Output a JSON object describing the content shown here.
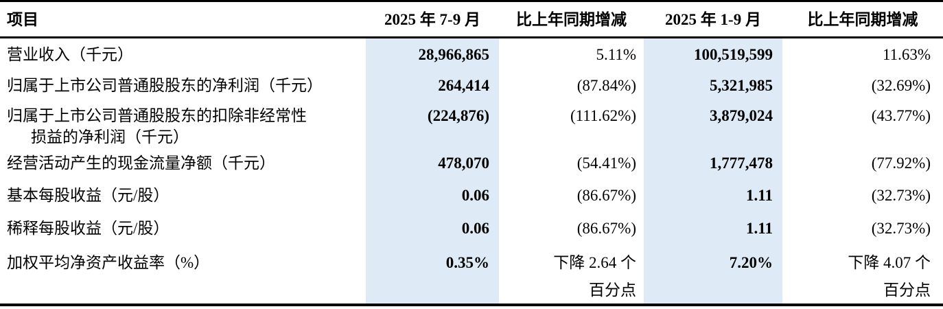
{
  "table": {
    "headers": {
      "item": "项目",
      "q3_period": "2025 年 7-9 月",
      "q3_change": "比上年同期增减",
      "ytd_period": "2025 年 1-9 月",
      "ytd_change": "比上年同期增减"
    },
    "rows": [
      {
        "label": "营业收入（千元）",
        "q3": "28,966,865",
        "q3_change": "5.11%",
        "ytd": "100,519,599",
        "ytd_change": "11.63%"
      },
      {
        "label": "归属于上市公司普通股股东的净利润（千元）",
        "q3": "264,414",
        "q3_change": "(87.84%)",
        "ytd": "5,321,985",
        "ytd_change": "(32.69%)"
      },
      {
        "label": "归属于上市公司普通股股东的扣除非经常性\n损益的净利润（千元）",
        "q3": "(224,876)",
        "q3_change": "(111.62%)",
        "ytd": "3,879,024",
        "ytd_change": "(43.77%)"
      },
      {
        "label": "经营活动产生的现金流量净额（千元）",
        "q3": "478,070",
        "q3_change": "(54.41%)",
        "ytd": "1,777,478",
        "ytd_change": "(77.92%)"
      },
      {
        "label": "基本每股收益（元/股）",
        "q3": "0.06",
        "q3_change": "(86.67%)",
        "ytd": "1.11",
        "ytd_change": "(32.73%)"
      },
      {
        "label": "稀释每股收益（元/股）",
        "q3": "0.06",
        "q3_change": "(86.67%)",
        "ytd": "1.11",
        "ytd_change": "(32.73%)"
      },
      {
        "label": "加权平均净资产收益率（%）",
        "q3": "0.35%",
        "q3_change": "下降 2.64 个\n百分点",
        "ytd": "7.20%",
        "ytd_change": "下降 4.07 个\n百分点"
      }
    ]
  },
  "colors": {
    "highlight_column": "#deeaf6",
    "border": "#000000",
    "text": "#000000"
  }
}
